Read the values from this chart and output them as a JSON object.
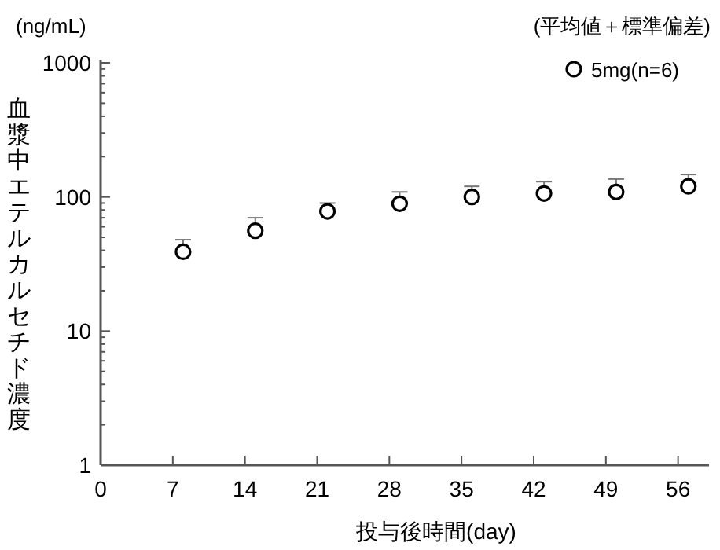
{
  "chart_data": {
    "type": "scatter",
    "xlabel": "投与後時間(day)",
    "ylabel": "血漿中エテルカルセチド濃度",
    "annotations": [
      "(ng/mL)",
      "(平均値＋標準偏差)"
    ],
    "log": "y",
    "legend": "top right",
    "marker": "circle",
    "xlim": [
      0,
      59
    ],
    "xticks": [
      0,
      7,
      14,
      21,
      28,
      35,
      42,
      49,
      56
    ],
    "ylim": [
      1,
      1000
    ],
    "yticks": [
      1,
      {
        "value": 2,
        "label": null
      },
      {
        "value": 3,
        "label": null
      },
      {
        "value": 4,
        "label": null
      },
      {
        "value": 5,
        "label": null
      },
      {
        "value": 6,
        "label": null
      },
      {
        "value": 7,
        "label": null
      },
      {
        "value": 8,
        "label": null
      },
      {
        "value": 9,
        "label": null
      },
      10,
      {
        "value": 20,
        "label": null
      },
      {
        "value": 30,
        "label": null
      },
      {
        "value": 40,
        "label": null
      },
      {
        "value": 50,
        "label": null
      },
      {
        "value": 60,
        "label": null
      },
      {
        "value": 70,
        "label": null
      },
      {
        "value": 80,
        "label": null
      },
      {
        "value": 90,
        "label": null
      },
      100,
      {
        "value": 200,
        "label": null
      },
      {
        "value": 300,
        "label": null
      },
      {
        "value": 400,
        "label": null
      },
      {
        "value": 500,
        "label": null
      },
      {
        "value": 600,
        "label": null
      },
      {
        "value": 700,
        "label": null
      },
      {
        "value": 800,
        "label": null
      },
      {
        "value": 900,
        "label": null
      },
      1000
    ],
    "series": [
      {
        "name": "5mg(n=6)",
        "color": "#000000",
        "x": [
          8,
          15,
          22,
          29,
          36,
          43,
          50,
          57
        ],
        "values": [
          39,
          56,
          78,
          89,
          100,
          106,
          109,
          120
        ],
        "errors": [
          [
            39,
            48
          ],
          [
            56,
            70
          ],
          [
            78,
            90
          ],
          [
            89,
            109
          ],
          [
            100,
            120
          ],
          [
            106,
            130
          ],
          [
            109,
            136
          ],
          [
            120,
            147
          ]
        ]
      }
    ]
  }
}
